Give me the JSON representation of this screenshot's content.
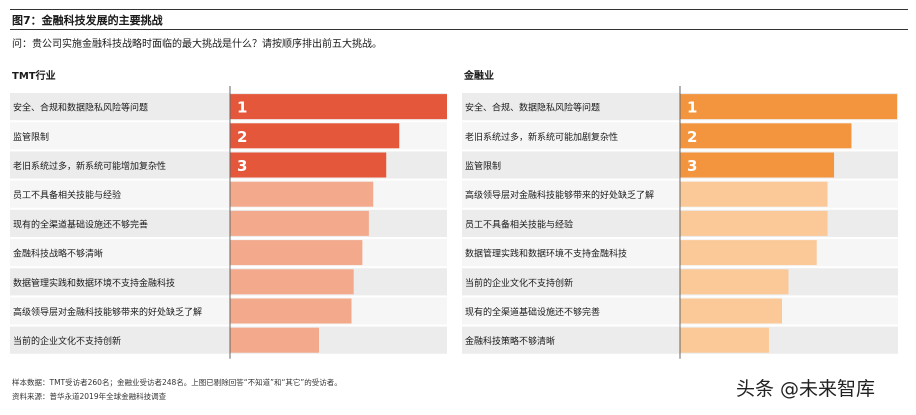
{
  "figure": {
    "title": "图7：金融科技发展的主要挑战",
    "question": "问：贵公司实施金融科技战略时面临的最大挑战是什么？请按顺序排出前五大挑战。"
  },
  "chart_data": [
    {
      "type": "bar",
      "orientation": "horizontal",
      "title": "TMT行业",
      "categories": [
        "安全、合规和数据隐私风险等问题",
        "监管限制",
        "老旧系统过多，新系统可能增加复杂性",
        "员工不具备相关技能与经验",
        "现有的全渠道基础设施还不够完善",
        "金融科技战略不够清晰",
        "数据管理实践和数据环境不支持金融科技",
        "高级领导层对金融科技能够带来的好处缺乏了解",
        "当前的企业文化不支持创新"
      ],
      "values": [
        100,
        78,
        72,
        66,
        64,
        61,
        57,
        56,
        41
      ],
      "value_unit": "relative bar length (percent of longest bar)",
      "rank_labels": [
        "1",
        "2",
        "3"
      ],
      "top_color": "#e4573b",
      "rest_color": "#f2a98c",
      "grid": false,
      "legend": "none"
    },
    {
      "type": "bar",
      "orientation": "horizontal",
      "title": "金融业",
      "categories": [
        "安全、合规、数据隐私风险等问题",
        "老旧系统过多，新系统可能加剧复杂性",
        "监管限制",
        "高级领导层对金融科技能够带来的好处缺乏了解",
        "员工不具备相关技能与经验",
        "数据管理实践和数据环境不支持金融科技",
        "当前的企业文化不支持创新",
        "现有的全渠道基础设施还不够完善",
        "金融科技策略不够清晰"
      ],
      "values": [
        100,
        79,
        71,
        68,
        68,
        63,
        50,
        47,
        41
      ],
      "value_unit": "relative bar length (percent of longest bar)",
      "rank_labels": [
        "1",
        "2",
        "3"
      ],
      "top_color": "#f3953f",
      "rest_color": "#fac997",
      "grid": false,
      "legend": "none"
    }
  ],
  "footer": {
    "sample": "样本数据：TMT受访者260名；金融业受访者248名。上图已剔除回答“不知道”和“其它”的受访者。",
    "source": "资料来源：普华永道2019年全球金融科技调查"
  },
  "watermark": "头条 @未来智库"
}
